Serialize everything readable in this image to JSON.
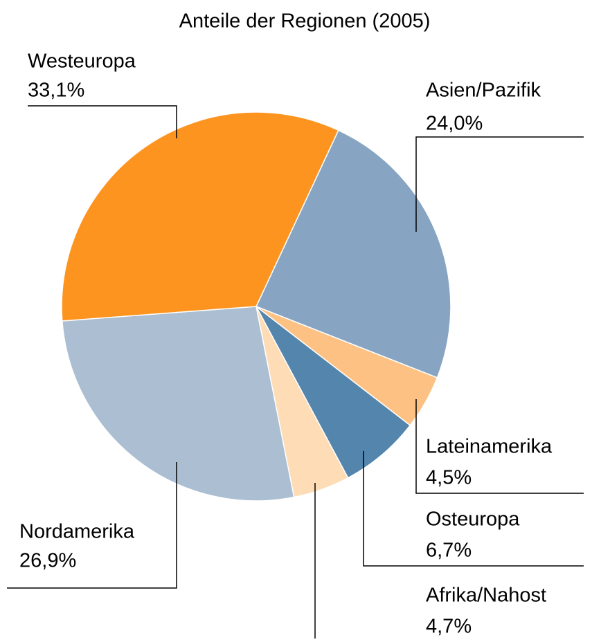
{
  "chart_data": {
    "type": "pie",
    "title": "Anteile der Regionen (2005)",
    "categories": [
      "Asien/Pazifik",
      "Lateinamerika",
      "Osteuropa",
      "Afrika/Nahost",
      "Nordamerika",
      "Westeuropa"
    ],
    "values": [
      24.0,
      4.5,
      6.7,
      4.7,
      26.9,
      33.1
    ],
    "value_labels": [
      "24,0%",
      "4,5%",
      "6,7%",
      "4,7%",
      "26,9%",
      "33,1%"
    ],
    "colors": [
      "#87a5c3",
      "#fdc283",
      "#5385ad",
      "#fedcb5",
      "#abbed2",
      "#fd9420"
    ]
  }
}
